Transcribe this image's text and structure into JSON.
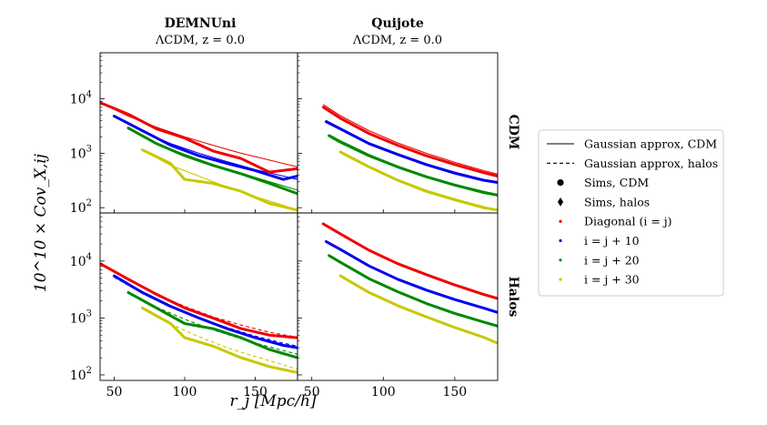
{
  "chart_data": {
    "type": "line",
    "columns": [
      {
        "title": "DEMNUni",
        "subtitle": "ΛCDM, z = 0.0"
      },
      {
        "title": "Quijote",
        "subtitle": "ΛCDM, z = 0.0"
      }
    ],
    "rows": [
      {
        "label": "CDM"
      },
      {
        "label": "Halos"
      }
    ],
    "xlabel": "r_j [Mpc/h]",
    "ylabel": "10^10 × Cov_X,ij",
    "xlim": [
      40,
      180
    ],
    "ylim": [
      80,
      70000
    ],
    "xscale": "linear",
    "yscale": "log",
    "xticks": [
      {
        "value": 50,
        "label": "50"
      },
      {
        "value": 100,
        "label": "100"
      },
      {
        "value": 150,
        "label": "150"
      }
    ],
    "yticks": [
      {
        "value": 100,
        "label_base": "10",
        "label_exp": "2"
      },
      {
        "value": 1000,
        "label_base": "10",
        "label_exp": "3"
      },
      {
        "value": 10000,
        "label_base": "10",
        "label_exp": "4"
      }
    ],
    "series": [
      {
        "name": "Diagonal (i = j)",
        "color": "#ee0000",
        "offset": 0
      },
      {
        "name": "i = j + 10",
        "color": "#0000ee",
        "offset": 10
      },
      {
        "name": "i = j + 20",
        "color": "#008800",
        "offset": 20
      },
      {
        "name": "i = j + 30",
        "color": "#c8c800",
        "offset": 30
      }
    ],
    "panels": [
      {
        "row": 0,
        "col": 0,
        "kind": "sims-cdm",
        "model": "gaussian-cdm",
        "sims": [
          {
            "series": 0,
            "x": [
              40,
              60,
              80,
              100,
              120,
              140,
              160,
              180
            ],
            "y": [
              8500,
              5200,
              2800,
              1900,
              1100,
              800,
              450,
              520
            ]
          },
          {
            "series": 1,
            "x": [
              50,
              70,
              90,
              110,
              130,
              150,
              170,
              180
            ],
            "y": [
              4800,
              2600,
              1400,
              900,
              650,
              480,
              330,
              380
            ]
          },
          {
            "series": 2,
            "x": [
              60,
              80,
              100,
              120,
              140,
              160,
              180
            ],
            "y": [
              2900,
              1500,
              900,
              600,
              420,
              280,
              180
            ]
          },
          {
            "series": 3,
            "x": [
              70,
              90,
              100,
              120,
              140,
              160,
              180
            ],
            "y": [
              1150,
              650,
              330,
              280,
              200,
              120,
              90
            ]
          }
        ],
        "model_curves": [
          {
            "series": 0,
            "x": [
              40,
              60,
              80,
              100,
              120,
              140,
              160,
              180
            ],
            "y": [
              8500,
              4800,
              3000,
              2000,
              1400,
              1000,
              750,
              560
            ]
          },
          {
            "series": 1,
            "x": [
              50,
              70,
              90,
              110,
              130,
              150,
              170,
              180
            ],
            "y": [
              4700,
              2500,
              1500,
              1000,
              700,
              500,
              380,
              330
            ]
          },
          {
            "series": 2,
            "x": [
              60,
              80,
              100,
              120,
              140,
              160,
              180
            ],
            "y": [
              2800,
              1500,
              950,
              620,
              430,
              300,
              210
            ]
          },
          {
            "series": 3,
            "x": [
              70,
              90,
              110,
              130,
              150,
              170,
              180
            ],
            "y": [
              1150,
              600,
              380,
              240,
              160,
              110,
              90
            ]
          }
        ]
      },
      {
        "row": 0,
        "col": 1,
        "kind": "sims-cdm",
        "model": "gaussian-cdm",
        "sims": [
          {
            "series": 0,
            "x": [
              58,
              70,
              90,
              110,
              130,
              150,
              170,
              180
            ],
            "y": [
              7000,
              4400,
              2300,
              1400,
              900,
              620,
              440,
              380
            ]
          },
          {
            "series": 1,
            "x": [
              60,
              70,
              90,
              110,
              130,
              150,
              170,
              180
            ],
            "y": [
              3800,
              2800,
              1500,
              950,
              620,
              430,
              320,
              290
            ]
          },
          {
            "series": 2,
            "x": [
              62,
              70,
              90,
              110,
              130,
              150,
              170,
              180
            ],
            "y": [
              2100,
              1600,
              900,
              560,
              370,
              260,
              190,
              170
            ]
          },
          {
            "series": 3,
            "x": [
              70,
              90,
              110,
              130,
              150,
              170,
              180
            ],
            "y": [
              1050,
              560,
              320,
              200,
              140,
              100,
              90
            ]
          }
        ],
        "model_curves": [
          {
            "series": 0,
            "x": [
              58,
              70,
              90,
              110,
              130,
              150,
              170,
              180
            ],
            "y": [
              7800,
              4900,
              2600,
              1550,
              1000,
              680,
              480,
              410
            ]
          },
          {
            "series": 1,
            "x": [
              60,
              70,
              90,
              110,
              130,
              150,
              170,
              180
            ],
            "y": [
              4000,
              2900,
              1550,
              980,
              640,
              450,
              330,
              300
            ]
          },
          {
            "series": 2,
            "x": [
              62,
              70,
              90,
              110,
              130,
              150,
              170,
              180
            ],
            "y": [
              2200,
              1700,
              950,
              580,
              380,
              270,
              200,
              175
            ]
          },
          {
            "series": 3,
            "x": [
              70,
              90,
              110,
              130,
              150,
              170,
              180
            ],
            "y": [
              1100,
              580,
              330,
              210,
              145,
              105,
              92
            ]
          }
        ]
      },
      {
        "row": 1,
        "col": 0,
        "kind": "sims-halos",
        "model": "gaussian-halos",
        "sims": [
          {
            "series": 0,
            "x": [
              40,
              60,
              80,
              100,
              120,
              140,
              160,
              180
            ],
            "y": [
              9000,
              4800,
              2600,
              1500,
              1000,
              650,
              500,
              450
            ]
          },
          {
            "series": 1,
            "x": [
              50,
              70,
              90,
              110,
              130,
              150,
              170,
              180
            ],
            "y": [
              5500,
              2800,
              1600,
              1000,
              650,
              450,
              330,
              300
            ]
          },
          {
            "series": 2,
            "x": [
              60,
              80,
              100,
              120,
              140,
              160,
              180
            ],
            "y": [
              2800,
              1500,
              800,
              650,
              450,
              280,
              200
            ]
          },
          {
            "series": 3,
            "x": [
              70,
              90,
              100,
              120,
              140,
              160,
              180
            ],
            "y": [
              1500,
              800,
              450,
              320,
              200,
              140,
              110
            ]
          }
        ],
        "model_curves": [
          {
            "series": 0,
            "x": [
              40,
              60,
              80,
              100,
              120,
              140,
              160,
              180
            ],
            "y": [
              9000,
              4600,
              2600,
              1600,
              1050,
              750,
              560,
              460
            ]
          },
          {
            "series": 1,
            "x": [
              50,
              70,
              90,
              110,
              130,
              150,
              170,
              180
            ],
            "y": [
              5200,
              2700,
              1550,
              1000,
              680,
              480,
              360,
              320
            ]
          },
          {
            "series": 2,
            "x": [
              60,
              80,
              100,
              120,
              140,
              160,
              180
            ],
            "y": [
              2900,
              1550,
              950,
              620,
              430,
              310,
              230
            ]
          },
          {
            "series": 3,
            "x": [
              70,
              90,
              110,
              130,
              150,
              170,
              180
            ],
            "y": [
              1500,
              780,
              470,
              300,
              210,
              150,
              125
            ]
          }
        ]
      },
      {
        "row": 1,
        "col": 1,
        "kind": "sims-halos",
        "model": "none",
        "sims": [
          {
            "series": 0,
            "x": [
              58,
              70,
              90,
              110,
              130,
              150,
              170,
              180
            ],
            "y": [
              45000,
              30000,
              15500,
              9000,
              5800,
              3800,
              2600,
              2200
            ]
          },
          {
            "series": 1,
            "x": [
              60,
              70,
              90,
              110,
              130,
              150,
              170,
              180
            ],
            "y": [
              22000,
              16000,
              8200,
              4800,
              3100,
              2100,
              1500,
              1250
            ]
          },
          {
            "series": 2,
            "x": [
              62,
              70,
              90,
              110,
              130,
              150,
              170,
              180
            ],
            "y": [
              12500,
              9500,
              4900,
              2900,
              1800,
              1200,
              850,
              720
            ]
          },
          {
            "series": 3,
            "x": [
              70,
              90,
              110,
              130,
              150,
              170,
              180
            ],
            "y": [
              5500,
              2800,
              1650,
              1050,
              680,
              460,
              360
            ]
          }
        ],
        "model_curves": []
      }
    ],
    "legend": {
      "placement": "right",
      "entries": [
        {
          "label": "Gaussian approx, CDM",
          "marker": "solid-line"
        },
        {
          "label": "Gaussian approx, halos",
          "marker": "dashed-line"
        },
        {
          "label": "Sims, CDM",
          "marker": "circle"
        },
        {
          "label": "Sims, halos",
          "marker": "diamond"
        },
        {
          "label": "Diagonal (i = j)",
          "marker": "dot",
          "color": "#ee0000"
        },
        {
          "label": "i = j + 10",
          "marker": "dot",
          "color": "#0000ee"
        },
        {
          "label": "i = j + 20",
          "marker": "dot",
          "color": "#008800"
        },
        {
          "label": "i = j + 30",
          "marker": "dot",
          "color": "#c8c800"
        }
      ]
    }
  }
}
